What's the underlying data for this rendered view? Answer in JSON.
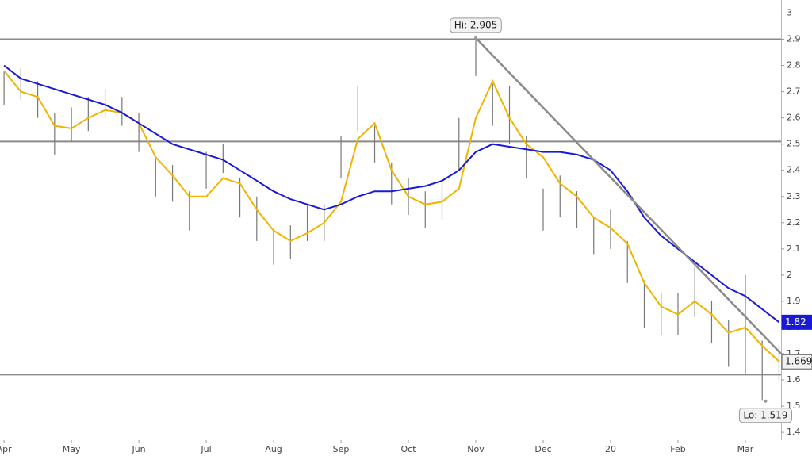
{
  "chart_data": {
    "type": "ohlc",
    "xlim": [
      -0.06,
      11.53
    ],
    "ylim": [
      1.37,
      3.05
    ],
    "xticks": [
      {
        "value": 0,
        "label": "Apr"
      },
      {
        "value": 1,
        "label": "May"
      },
      {
        "value": 2,
        "label": "Jun"
      },
      {
        "value": 3,
        "label": "Jul"
      },
      {
        "value": 4,
        "label": "Aug"
      },
      {
        "value": 5,
        "label": "Sep"
      },
      {
        "value": 6,
        "label": "Oct"
      },
      {
        "value": 7,
        "label": "Nov"
      },
      {
        "value": 8,
        "label": "Dec"
      },
      {
        "value": 9,
        "label": "20"
      },
      {
        "value": 10,
        "label": "Feb"
      },
      {
        "value": 11,
        "label": "Mar"
      }
    ],
    "yticks": [
      1.4,
      1.5,
      1.6,
      1.7,
      1.8,
      1.9,
      2,
      2.1,
      2.2,
      2.3,
      2.4,
      2.5,
      2.6,
      2.7,
      2.8,
      2.9,
      3
    ],
    "x": [
      0,
      0.25,
      0.5,
      0.75,
      1,
      1.25,
      1.5,
      1.75,
      2,
      2.25,
      2.5,
      2.75,
      3,
      3.25,
      3.5,
      3.75,
      4,
      4.25,
      4.5,
      4.75,
      5,
      5.25,
      5.5,
      5.75,
      6,
      6.25,
      6.5,
      6.75,
      7,
      7.25,
      7.5,
      7.75,
      8,
      8.25,
      8.5,
      8.75,
      9,
      9.25,
      9.5,
      9.75,
      10,
      10.25,
      10.5,
      10.75,
      11,
      11.25,
      11.5
    ],
    "bars": {
      "color": "#777777",
      "high": [
        2.78,
        2.79,
        2.74,
        2.62,
        2.64,
        2.68,
        2.71,
        2.68,
        2.62,
        2.45,
        2.42,
        2.32,
        2.47,
        2.5,
        2.37,
        2.3,
        2.17,
        2.19,
        2.27,
        2.27,
        2.53,
        2.72,
        2.57,
        2.43,
        2.37,
        2.32,
        2.35,
        2.6,
        2.91,
        2.73,
        2.72,
        2.53,
        2.33,
        2.38,
        2.32,
        2.22,
        2.25,
        2.13,
        1.98,
        1.93,
        1.93,
        2.03,
        1.9,
        1.83,
        2.0,
        1.75,
        1.73
      ],
      "low": [
        2.65,
        2.67,
        2.6,
        2.46,
        2.51,
        2.55,
        2.6,
        2.57,
        2.47,
        2.3,
        2.28,
        2.17,
        2.33,
        2.39,
        2.22,
        2.13,
        2.04,
        2.06,
        2.13,
        2.13,
        2.37,
        2.55,
        2.43,
        2.27,
        2.23,
        2.18,
        2.21,
        2.4,
        2.76,
        2.57,
        2.5,
        2.37,
        2.17,
        2.22,
        2.18,
        2.08,
        2.1,
        1.97,
        1.8,
        1.77,
        1.77,
        1.84,
        1.74,
        1.65,
        1.62,
        1.52,
        1.6
      ]
    },
    "series": [
      {
        "color": "#f0b400",
        "values": [
          2.78,
          2.7,
          2.68,
          2.57,
          2.56,
          2.6,
          2.63,
          2.62,
          2.58,
          2.45,
          2.38,
          2.3,
          2.3,
          2.37,
          2.35,
          2.25,
          2.17,
          2.13,
          2.16,
          2.2,
          2.28,
          2.52,
          2.58,
          2.4,
          2.3,
          2.27,
          2.28,
          2.33,
          2.6,
          2.74,
          2.6,
          2.5,
          2.45,
          2.35,
          2.3,
          2.22,
          2.18,
          2.12,
          1.97,
          1.88,
          1.85,
          1.9,
          1.85,
          1.78,
          1.8,
          1.73,
          1.67
        ]
      },
      {
        "color": "#1a1ad6",
        "values": [
          2.8,
          2.75,
          2.73,
          2.71,
          2.69,
          2.67,
          2.65,
          2.62,
          2.58,
          2.54,
          2.5,
          2.48,
          2.46,
          2.44,
          2.4,
          2.36,
          2.32,
          2.29,
          2.27,
          2.25,
          2.27,
          2.3,
          2.32,
          2.32,
          2.33,
          2.34,
          2.36,
          2.4,
          2.47,
          2.5,
          2.49,
          2.48,
          2.47,
          2.47,
          2.46,
          2.44,
          2.4,
          2.32,
          2.22,
          2.15,
          2.1,
          2.05,
          2.0,
          1.95,
          1.92,
          1.87,
          1.82
        ]
      }
    ],
    "levels": [
      2.9,
      2.51,
      1.62
    ],
    "trendline": {
      "x": [
        7.0,
        11.53
      ],
      "y": [
        2.905,
        1.7
      ]
    },
    "annotations": [
      {
        "text": "Hi: 2.905",
        "x": 7.0,
        "y": 2.905
      },
      {
        "text": "Lo: 1.519",
        "x": 11.3,
        "y": 1.519
      }
    ],
    "last_labels": [
      {
        "value": 1.82,
        "color": "#1a1ad6"
      },
      {
        "value": 1.669,
        "color": "#555555"
      }
    ]
  }
}
